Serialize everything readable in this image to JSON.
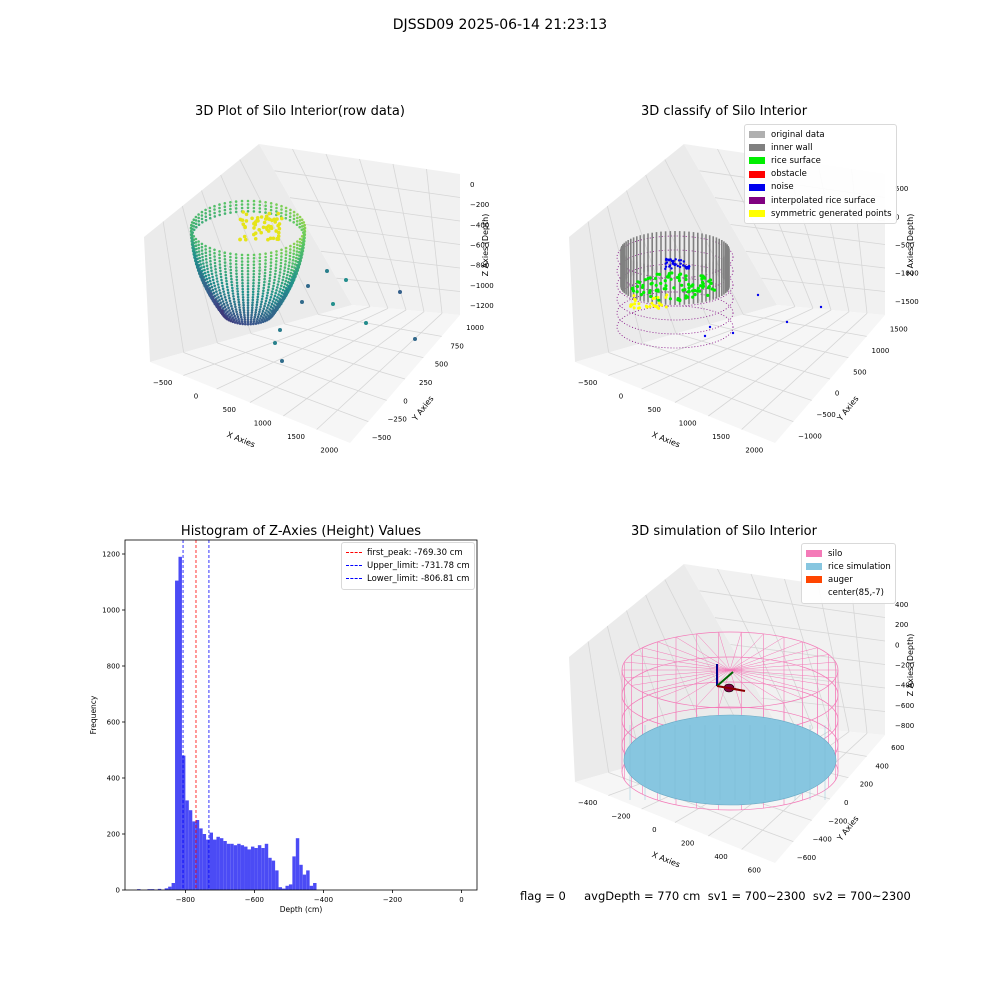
{
  "suptitle": "DJSSD09 2025-06-14 21:23:13",
  "status_text": "flag = 0     avgDepth = 770 cm  sv1 = 700~2300  sv2 = 700~2300",
  "colors": {
    "histogram_bar": "#4b4bf5",
    "silo_wire": "#f47ab8",
    "rice_simulation": "#87c6e0",
    "auger": "#ff4500"
  },
  "chart_data": [
    {
      "type": "scatter",
      "title": "3D Plot of Silo Interior(row data)",
      "xlabel": "X Axies",
      "ylabel": "Y Axies",
      "zlabel": "Z Axies (Depth)",
      "x_ticks": [
        "−500",
        "0",
        "500",
        "1000",
        "1500",
        "2000"
      ],
      "y_ticks": [
        "−500",
        "−250",
        "0",
        "250",
        "500",
        "750",
        "1000"
      ],
      "z_ticks": [
        "0",
        "−200",
        "−400",
        "−600",
        "−800",
        "−1000",
        "−1200"
      ],
      "colormap": "viridis"
    },
    {
      "type": "scatter",
      "title": "3D classify of Silo Interior",
      "xlabel": "X Axies",
      "ylabel": "Y Axies",
      "zlabel": "Z Axies (Depth)",
      "x_ticks": [
        "−500",
        "0",
        "500",
        "1000",
        "1500",
        "2000"
      ],
      "y_ticks": [
        "−1000",
        "−500",
        "0",
        "500",
        "1000",
        "1500"
      ],
      "z_ticks": [
        "500",
        "0",
        "−500",
        "−1000",
        "−1500"
      ],
      "legend": [
        {
          "label": "original data",
          "color": "#b0b0b0"
        },
        {
          "label": "inner wall",
          "color": "#808080"
        },
        {
          "label": "rice surface",
          "color": "#00ee00"
        },
        {
          "label": "obstacle",
          "color": "#ff0000"
        },
        {
          "label": "noise",
          "color": "#0000ee"
        },
        {
          "label": "interpolated rice surface",
          "color": "#800080"
        },
        {
          "label": "symmetric generated points",
          "color": "#ffff00"
        }
      ]
    },
    {
      "type": "bar",
      "title": "Histogram of Z-Axies (Height) Values",
      "xlabel": "Depth (cm)",
      "ylabel": "Frequency",
      "bin_edges_start": -940,
      "bin_width": 10,
      "xlim": [
        -975,
        45
      ],
      "ylim": [
        0,
        1250
      ],
      "x_ticks": [
        -800,
        -600,
        -400,
        -200,
        0
      ],
      "x_tick_labels": [
        "−800",
        "−600",
        "−400",
        "−200",
        "0"
      ],
      "y_ticks": [
        0,
        200,
        400,
        600,
        800,
        1000,
        1200
      ],
      "values": [
        3,
        0,
        0,
        3,
        3,
        0,
        4,
        0,
        6,
        12,
        25,
        1105,
        1190,
        480,
        320,
        285,
        245,
        250,
        220,
        200,
        180,
        205,
        180,
        190,
        185,
        175,
        165,
        165,
        160,
        165,
        160,
        155,
        145,
        155,
        150,
        160,
        150,
        165,
        115,
        105,
        70,
        10,
        5,
        15,
        20,
        120,
        185,
        90,
        55,
        70,
        15,
        25
      ],
      "vlines": [
        {
          "value": -769.3,
          "label": "first_peak: -769.30 cm",
          "color": "#ff0000"
        },
        {
          "value": -731.78,
          "label": "Upper_limit: -731.78 cm",
          "color": "#0000ff"
        },
        {
          "value": -806.81,
          "label": "Lower_limit: -806.81 cm",
          "color": "#0000ff"
        }
      ]
    },
    {
      "type": "scatter",
      "title": "3D simulation of Silo Interior",
      "xlabel": "X Axies",
      "ylabel": "Y Axies",
      "zlabel": "Z Axies (Depth)",
      "x_ticks": [
        "−400",
        "−200",
        "0",
        "200",
        "400",
        "600"
      ],
      "y_ticks": [
        "−600",
        "−400",
        "−200",
        "0",
        "200",
        "400",
        "600"
      ],
      "z_ticks": [
        "400",
        "200",
        "0",
        "−200",
        "−400",
        "−600",
        "−800"
      ],
      "legend": [
        {
          "label": "silo",
          "color": "#f47ab8"
        },
        {
          "label": "rice simulation",
          "color": "#87c6e0"
        },
        {
          "label": "auger",
          "color": "#ff4500"
        },
        {
          "label": "center(85,-7)",
          "color": ""
        }
      ]
    }
  ]
}
